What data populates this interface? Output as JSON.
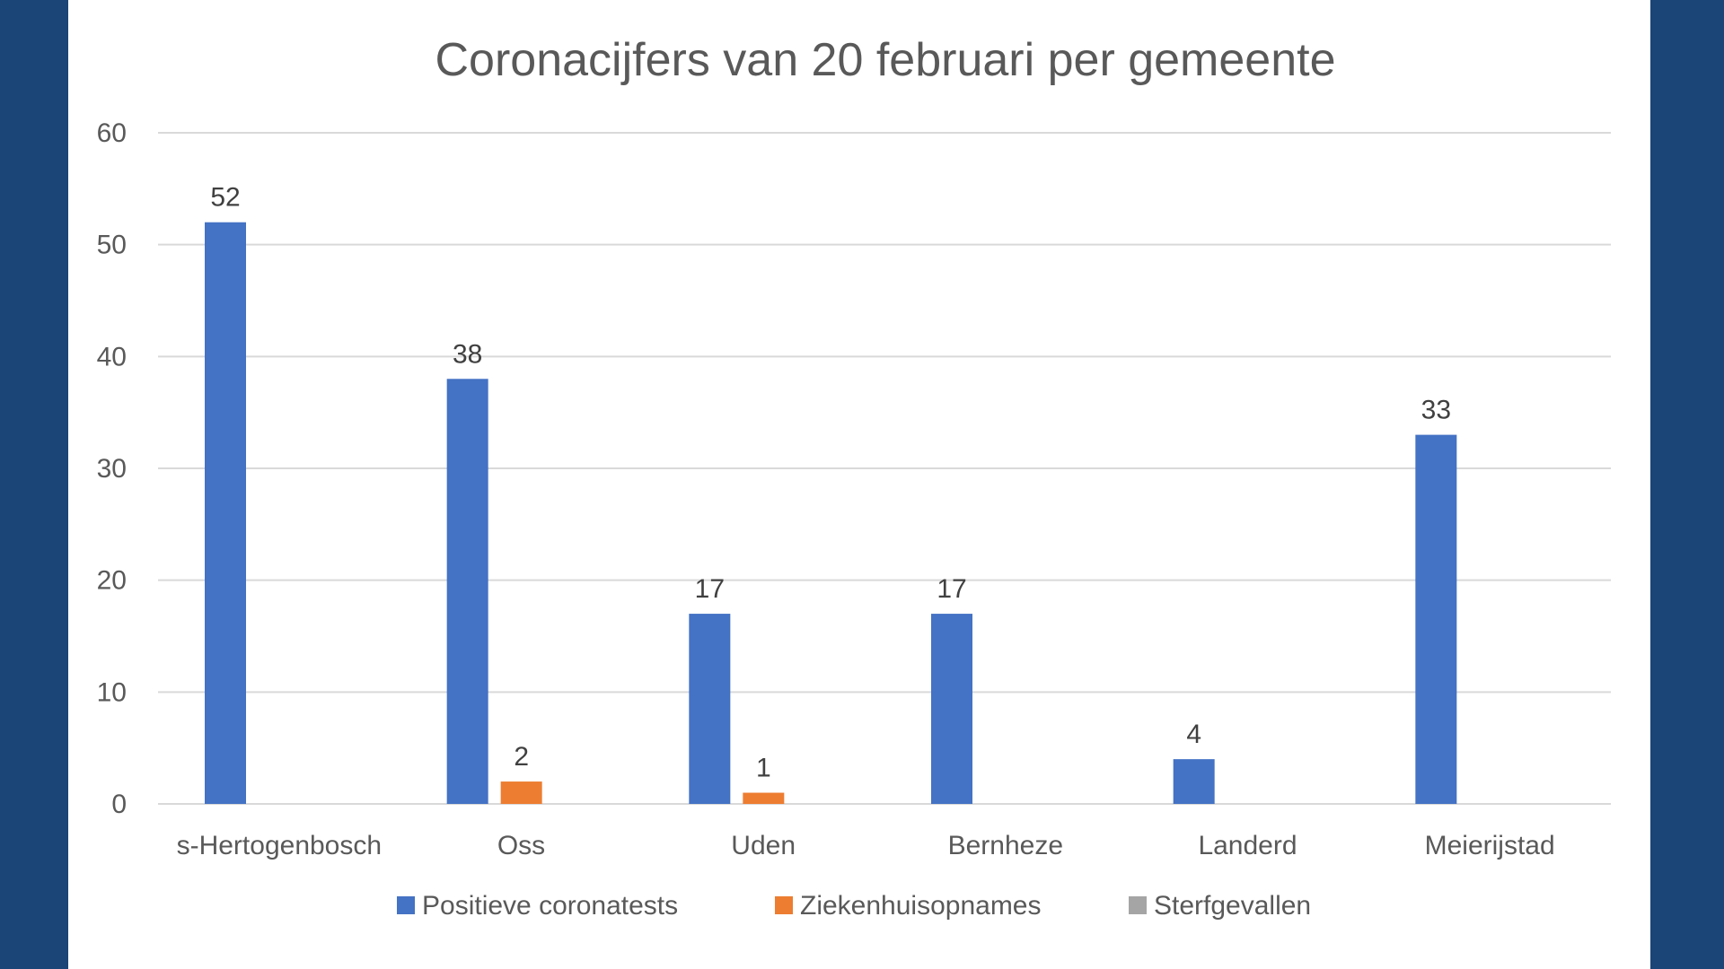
{
  "colors": {
    "background": "#1b4577",
    "panel": "#ffffff",
    "grid": "#d9d9d9",
    "text": "#595959"
  },
  "chart_data": {
    "type": "bar",
    "title": "Coronacijfers van 20 februari per gemeente",
    "xlabel": "",
    "ylabel": "",
    "ylim": [
      0,
      60
    ],
    "yticks": [
      0,
      10,
      20,
      30,
      40,
      50,
      60
    ],
    "grid": true,
    "legend_position": "bottom",
    "categories": [
      "s-Hertogenbosch",
      "Oss",
      "Uden",
      "Bernheze",
      "Landerd",
      "Meierijstad"
    ],
    "series": [
      {
        "name": "Positieve coronatests",
        "color": "#4472c4",
        "values": [
          52,
          38,
          17,
          17,
          4,
          33
        ],
        "labels": [
          "52",
          "38",
          "17",
          "17",
          "4",
          "33"
        ]
      },
      {
        "name": "Ziekenhuisopnames",
        "color": "#ed7d31",
        "values": [
          0,
          2,
          1,
          0,
          0,
          0
        ],
        "labels": [
          "",
          "2",
          "1",
          "",
          "",
          ""
        ]
      },
      {
        "name": "Sterfgevallen",
        "color": "#a5a5a5",
        "values": [
          0,
          0,
          0,
          0,
          0,
          0
        ],
        "labels": [
          "",
          "",
          "",
          "",
          "",
          ""
        ]
      }
    ]
  }
}
